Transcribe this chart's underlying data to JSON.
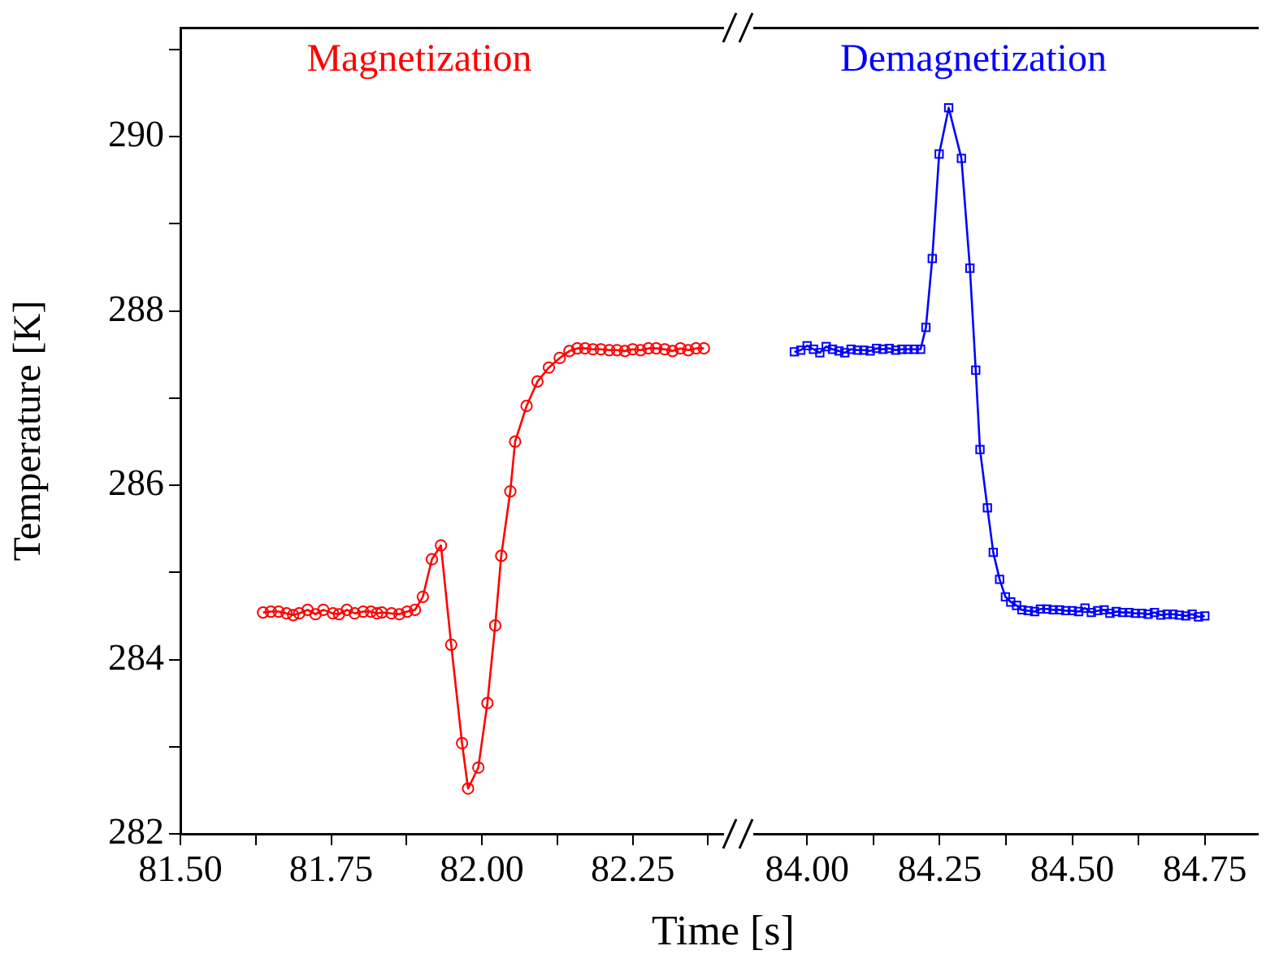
{
  "chart_data": [
    {
      "type": "line",
      "xlabel": "Time [s]",
      "ylabel": "Temperature [K]",
      "xlim": [
        81.5,
        82.4
      ],
      "xticks": [
        {
          "value": 81.5,
          "label": "81.50"
        },
        {
          "value": 81.625,
          "label": null
        },
        81.75,
        {
          "value": 81.875,
          "label": null
        },
        {
          "value": 82,
          "label": "82.00"
        },
        {
          "value": 82.125,
          "label": null
        },
        {
          "value": 82.25,
          "label": "82.25"
        },
        {
          "value": 82.375,
          "label": null
        }
      ],
      "ylim": [
        282,
        291.25
      ],
      "yticks": [
        282,
        {
          "value": 283,
          "label": null
        },
        284,
        {
          "value": 285,
          "label": null
        },
        286,
        {
          "value": 287,
          "label": null
        },
        288,
        {
          "value": 289,
          "label": null
        },
        290,
        {
          "value": 291,
          "label": null
        }
      ],
      "marker": "circle",
      "line_style": "solid",
      "legend": false,
      "series": [
        {
          "name": "Magnetization",
          "color": "#ff0000",
          "x": [
            81.637,
            81.65,
            81.663,
            81.676,
            81.687,
            81.697,
            81.711,
            81.724,
            81.737,
            81.753,
            81.763,
            81.776,
            81.789,
            81.803,
            81.816,
            81.826,
            81.834,
            81.85,
            81.863,
            81.876,
            81.889,
            81.902,
            81.917,
            81.932,
            81.949,
            81.967,
            81.977,
            81.994,
            82.009,
            82.022,
            82.032,
            82.047,
            82.055,
            82.074,
            82.092,
            82.111,
            82.129,
            82.145,
            82.158,
            82.171,
            82.184,
            82.197,
            82.211,
            82.224,
            82.237,
            82.25,
            82.263,
            82.276,
            82.289,
            82.303,
            82.316,
            82.329,
            82.342,
            82.355,
            82.368
          ],
          "values": [
            284.54,
            284.55,
            284.55,
            284.53,
            284.51,
            284.53,
            284.57,
            284.52,
            284.57,
            284.53,
            284.52,
            284.57,
            284.53,
            284.55,
            284.55,
            284.53,
            284.54,
            284.53,
            284.52,
            284.55,
            284.57,
            284.72,
            285.15,
            285.31,
            284.17,
            283.04,
            282.52,
            282.76,
            283.5,
            284.39,
            285.19,
            285.93,
            286.5,
            286.91,
            287.19,
            287.35,
            287.46,
            287.54,
            287.57,
            287.57,
            287.56,
            287.56,
            287.55,
            287.55,
            287.54,
            287.56,
            287.55,
            287.57,
            287.57,
            287.56,
            287.54,
            287.57,
            287.55,
            287.57,
            287.57
          ]
        }
      ]
    },
    {
      "type": "line",
      "tick_labels": "x",
      "xlim": [
        83.9,
        84.85
      ],
      "xticks": [
        {
          "value": 84,
          "label": "84.00"
        },
        {
          "value": 84.125,
          "label": null
        },
        {
          "value": 84.25,
          "label": "84.25"
        },
        {
          "value": 84.375,
          "label": null
        },
        {
          "value": 84.5,
          "label": "84.50"
        },
        {
          "value": 84.625,
          "label": null
        },
        {
          "value": 84.75,
          "label": "84.75"
        }
      ],
      "ylim": [
        282,
        291.25
      ],
      "marker": "square",
      "line_style": "solid",
      "legend": false,
      "series": [
        {
          "name": "Demagnetization",
          "color": "#0000ff",
          "x": [
            83.976,
            83.988,
            84.0,
            84.012,
            84.024,
            84.036,
            84.048,
            84.06,
            84.071,
            84.083,
            84.095,
            84.107,
            84.119,
            84.131,
            84.143,
            84.155,
            84.167,
            84.179,
            84.19,
            84.202,
            84.214,
            84.224,
            84.236,
            84.249,
            84.267,
            84.291,
            84.307,
            84.318,
            84.326,
            84.34,
            84.351,
            84.363,
            84.374,
            84.384,
            84.395,
            84.405,
            84.417,
            84.429,
            84.44,
            84.452,
            84.464,
            84.476,
            84.488,
            84.5,
            84.512,
            84.524,
            84.536,
            84.548,
            84.56,
            84.571,
            84.583,
            84.595,
            84.607,
            84.619,
            84.631,
            84.643,
            84.655,
            84.667,
            84.679,
            84.69,
            84.702,
            84.714,
            84.726,
            84.738,
            84.75
          ],
          "values": [
            287.53,
            287.55,
            287.6,
            287.56,
            287.52,
            287.59,
            287.56,
            287.54,
            287.52,
            287.56,
            287.55,
            287.55,
            287.54,
            287.57,
            287.56,
            287.57,
            287.55,
            287.56,
            287.56,
            287.56,
            287.56,
            287.81,
            288.6,
            289.8,
            290.33,
            289.75,
            288.49,
            287.32,
            286.41,
            285.74,
            285.23,
            284.92,
            284.72,
            284.66,
            284.62,
            284.57,
            284.56,
            284.55,
            284.58,
            284.58,
            284.57,
            284.57,
            284.56,
            284.56,
            284.55,
            284.59,
            284.54,
            284.56,
            284.57,
            284.53,
            284.55,
            284.54,
            284.54,
            284.53,
            284.53,
            284.52,
            284.54,
            284.51,
            284.52,
            284.52,
            284.51,
            284.5,
            284.52,
            284.49,
            284.5
          ]
        }
      ]
    }
  ]
}
